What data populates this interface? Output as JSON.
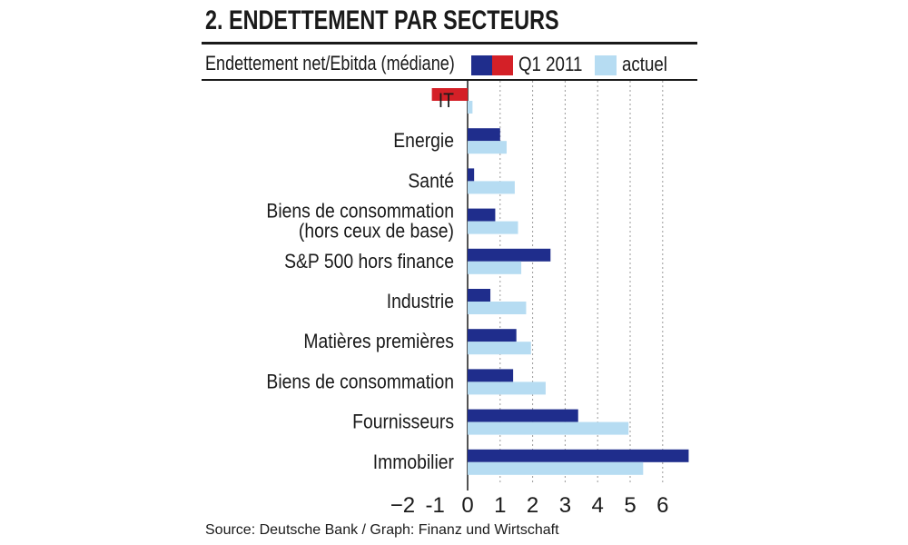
{
  "header": {
    "title": "2. ENDETTEMENT PAR SECTEURS",
    "subtitle": "Endettement net/Ebitda (médiane)"
  },
  "legend": {
    "q1_label": "Q1 2011",
    "current_label": "actuel"
  },
  "colors": {
    "q1_positive": "#1f2d8c",
    "q1_negative": "#d42027",
    "current": "#b6dcf2",
    "grid": "#9a9a9a",
    "text": "#1a1a1a"
  },
  "footer": {
    "source": "Source: Deutsche Bank / Graph: Finanz und Wirtschaft"
  },
  "chart_data": {
    "type": "bar",
    "orientation": "horizontal",
    "title": "2. ENDETTEMENT PAR SECTEURS",
    "ylabel": "Endettement net/Ebitda (médiane)",
    "xlim": [
      -2,
      7
    ],
    "xticks": [
      -2,
      -1,
      0,
      1,
      2,
      3,
      4,
      5,
      6
    ],
    "xtick_labels": [
      "−2",
      "-1",
      "0",
      "1",
      "2",
      "3",
      "4",
      "5",
      "6"
    ],
    "grid": "vertical dotted",
    "categories": [
      [
        "IT"
      ],
      [
        "Energie"
      ],
      [
        "Santé"
      ],
      [
        "Biens de consommation",
        "(hors ceux de base)"
      ],
      [
        "S&P 500 hors finance"
      ],
      [
        "Industrie"
      ],
      [
        "Matières premières"
      ],
      [
        "Biens de consommation"
      ],
      [
        "Fournisseurs"
      ],
      [
        "Immobilier"
      ]
    ],
    "series": [
      {
        "name": "Q1 2011",
        "values": [
          -1.1,
          1.0,
          0.2,
          0.85,
          2.55,
          0.7,
          1.5,
          1.4,
          3.4,
          6.8
        ]
      },
      {
        "name": "actuel",
        "values": [
          0.15,
          1.2,
          1.45,
          1.55,
          1.65,
          1.8,
          1.95,
          2.4,
          4.95,
          5.4
        ]
      }
    ]
  }
}
